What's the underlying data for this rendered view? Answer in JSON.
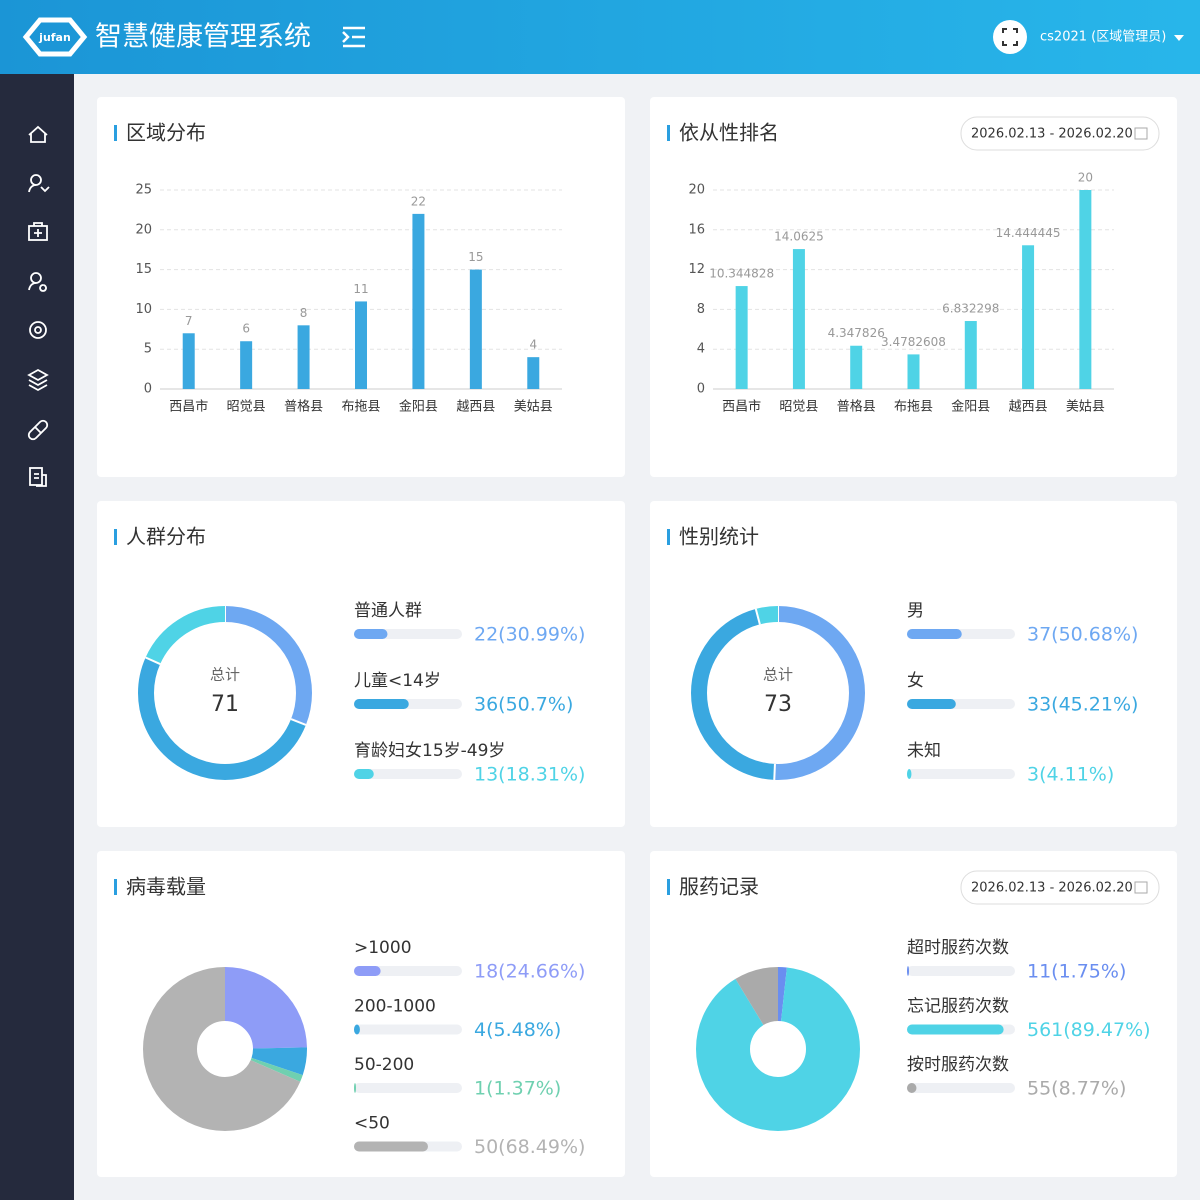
{
  "header": {
    "logo": "jufan",
    "title": "智慧健康管理系统",
    "user": "cs2021 (区域管理员)"
  },
  "chart_data": [
    {
      "type": "bar",
      "title": "区域分布",
      "categories": [
        "西昌市",
        "昭觉县",
        "普格县",
        "布拖县",
        "金阳县",
        "越西县",
        "美姑县"
      ],
      "values": [
        7,
        6,
        8,
        11,
        22,
        15,
        4
      ],
      "color": "#3aa8e0",
      "ylim": [
        0,
        25
      ],
      "yticks": [
        0,
        5,
        10,
        15,
        20,
        25
      ],
      "grid": true
    },
    {
      "type": "bar",
      "title": "依从性排名",
      "date_range": "2026.02.13 - 2026.02.20",
      "categories": [
        "西昌市",
        "昭觉县",
        "普格县",
        "布拖县",
        "金阳县",
        "越西县",
        "美姑县"
      ],
      "values": [
        10.344828,
        14.0625,
        4.347826,
        3.4782608,
        6.832298,
        14.444445,
        20
      ],
      "color": "#4fd3e6",
      "ylim": [
        0,
        20
      ],
      "yticks": [
        0,
        4,
        8,
        12,
        16,
        20
      ],
      "grid": true
    },
    {
      "type": "donut",
      "title": "人群分布",
      "center_label": "总计",
      "total": 71,
      "categories": [
        "普通人群",
        "儿童<14岁",
        "育龄妇女15岁-49岁"
      ],
      "values": [
        22,
        36,
        13
      ],
      "value_labels": [
        "22(30.99%)",
        "36(50.7%)",
        "13(18.31%)"
      ],
      "colors": [
        "#6ea8f2",
        "#3aa8e0",
        "#4fd3e6"
      ]
    },
    {
      "type": "donut",
      "title": "性别统计",
      "center_label": "总计",
      "total": 73,
      "categories": [
        "男",
        "女",
        "未知"
      ],
      "values": [
        37,
        33,
        3
      ],
      "value_labels": [
        "37(50.68%)",
        "33(45.21%)",
        "3(4.11%)"
      ],
      "colors": [
        "#6ea8f2",
        "#3aa8e0",
        "#4fd3e6"
      ]
    },
    {
      "type": "pie",
      "title": "病毒载量",
      "categories": [
        ">1000",
        "200-1000",
        "50-200",
        "<50"
      ],
      "values": [
        18,
        4,
        1,
        50
      ],
      "value_labels": [
        "18(24.66%)",
        "4(5.48%)",
        "1(1.37%)",
        "50(68.49%)"
      ],
      "colors": [
        "#8e9cf7",
        "#3aa8e0",
        "#6fd0b0",
        "#b3b3b3"
      ]
    },
    {
      "type": "pie",
      "title": "服药记录",
      "date_range": "2026.02.13 - 2026.02.20",
      "categories": [
        "超时服药次数",
        "忘记服药次数",
        "按时服药次数"
      ],
      "values": [
        11,
        561,
        55
      ],
      "value_labels": [
        "11(1.75%)",
        "561(89.47%)",
        "55(8.77%)"
      ],
      "colors": [
        "#6a8ef0",
        "#4fd3e6",
        "#aaaaaa"
      ]
    }
  ]
}
